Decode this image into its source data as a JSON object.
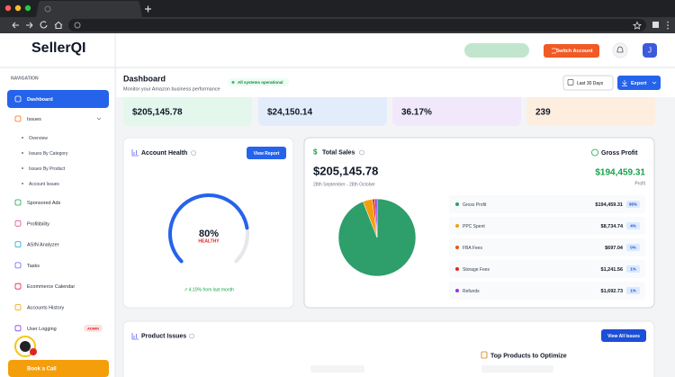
{
  "app": {
    "logo": "SellerQI",
    "switch_account": "Switch Account",
    "user_initial": "J"
  },
  "sidebar": {
    "heading": "NAVIGATION",
    "items": [
      {
        "label": "Dashboard",
        "active": true
      },
      {
        "label": "Issues",
        "expanded": true,
        "children": [
          "Overview",
          "Issues By Category",
          "Issues By Product",
          "Account Issues"
        ]
      },
      {
        "label": "Sponsored Ads"
      },
      {
        "label": "Profitibility"
      },
      {
        "label": "ASIN Analyzer"
      },
      {
        "label": "Tasks"
      },
      {
        "label": "Ecommerce Calendar"
      },
      {
        "label": "Accounts History"
      },
      {
        "label": "User Logging",
        "badge": "ADMIN"
      }
    ],
    "book_call": "Book a Call"
  },
  "header": {
    "title": "Dashboard",
    "subtitle": "Monitor your Amazon business performance",
    "status": "All systems operational",
    "range_button": "Last 30 Days",
    "export_button": "Export"
  },
  "stats": [
    {
      "value": "$205,145.78",
      "color": "#e3f7ec"
    },
    {
      "value": "$24,150.14",
      "color": "#e3ecfb"
    },
    {
      "value": "36.17%",
      "color": "#f1e8fb"
    },
    {
      "value": "239",
      "color": "#fdeee0"
    }
  ],
  "account_health": {
    "title": "Account Health",
    "button": "View Report",
    "score": "80%",
    "status": "HEALTHY",
    "change": "↗ 4.10% from last month"
  },
  "total_sales": {
    "title": "Total Sales",
    "amount": "$205,145.78",
    "period": "28th September - 28th October",
    "profit_title": "Gross Profit",
    "profit_amount": "$194,459.31",
    "profit_caption": "Profit",
    "breakdown": [
      {
        "name": "Gross Profit",
        "amount": "$194,459.31",
        "share": "95%",
        "color": "#2e9e6b"
      },
      {
        "name": "PPC Spent",
        "amount": "$8,734.74",
        "share": "4%",
        "color": "#f59e0b"
      },
      {
        "name": "FBA Fees",
        "amount": "$697.04",
        "share": "0%",
        "color": "#ea580c"
      },
      {
        "name": "Storage Fees",
        "amount": "$1,241.56",
        "share": "1%",
        "color": "#dc2626"
      },
      {
        "name": "Refunds",
        "amount": "$1,692.73",
        "share": "1%",
        "color": "#9333ea"
      }
    ]
  },
  "product_issues": {
    "title": "Product Issues",
    "button": "View All Issues",
    "top_products": "Top Products to Optimize"
  }
}
